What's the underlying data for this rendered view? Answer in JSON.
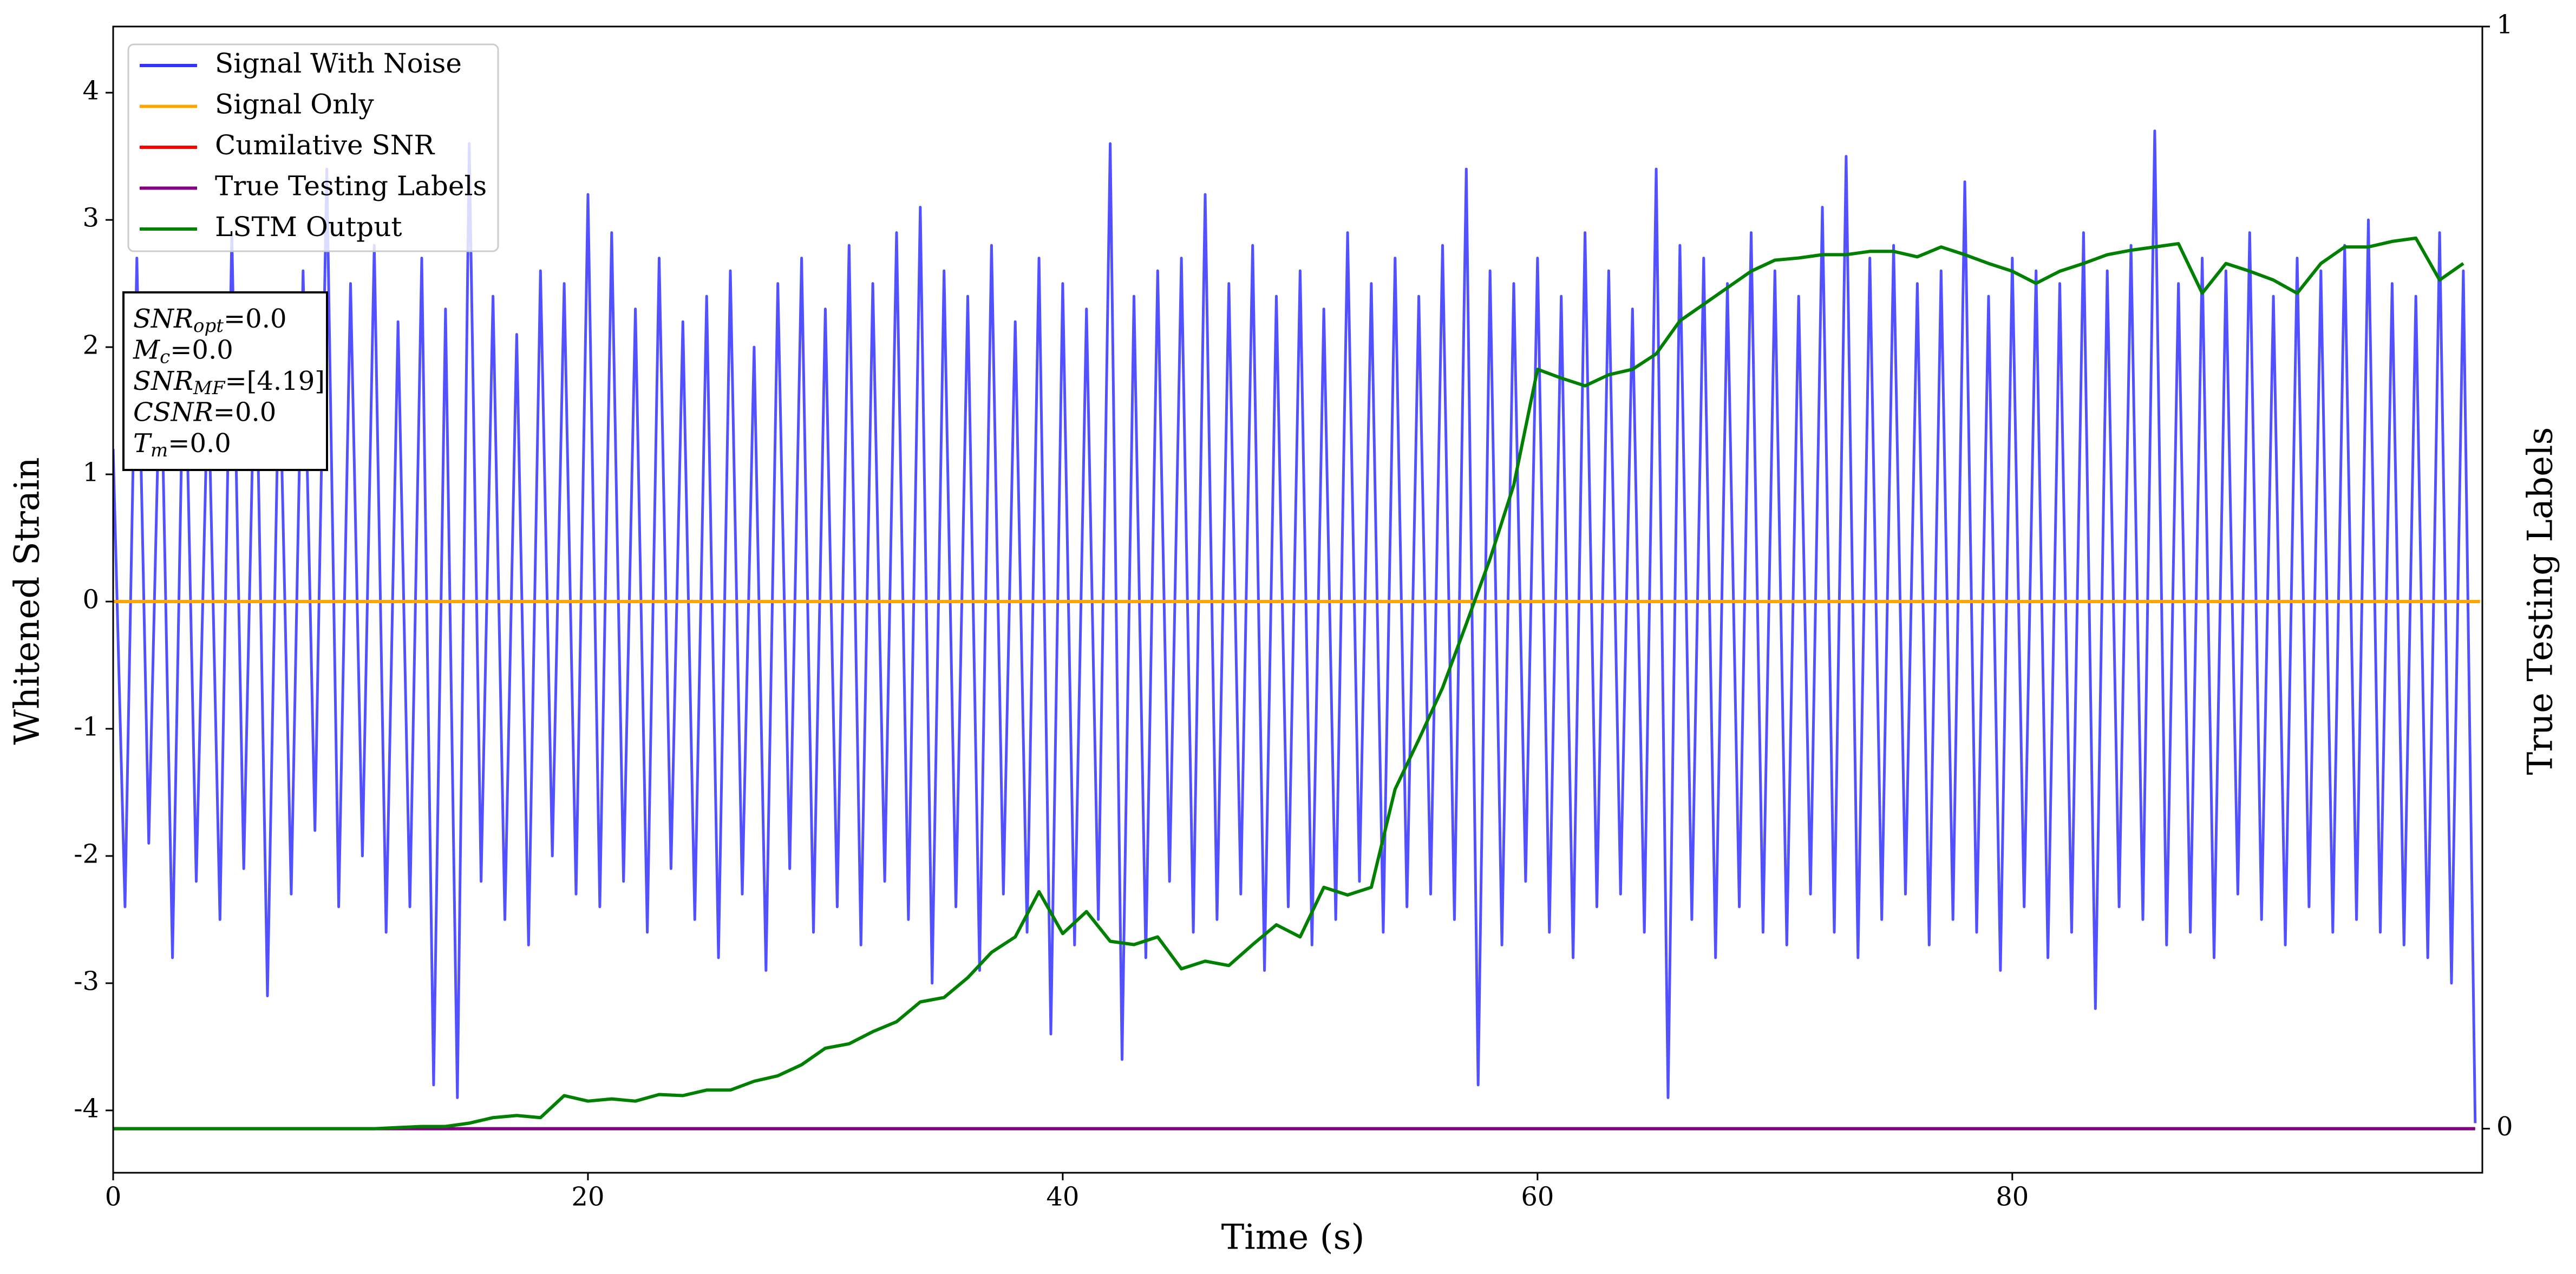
{
  "chart_data": {
    "type": "line",
    "xlabel": "Time (s)",
    "ylabel": "Whitened Strain",
    "y2label": "True Testing Labels",
    "xlim": [
      0,
      99.8
    ],
    "xticks": [
      0,
      20,
      40,
      60,
      80
    ],
    "ylim": [
      -4.49,
      4.52
    ],
    "yticks": [
      -4,
      -3,
      -2,
      -1,
      0,
      1,
      2,
      3,
      4
    ],
    "y2lim": [
      -0.04,
      1.0
    ],
    "y2ticks": [
      0,
      1
    ],
    "legend": "upper left",
    "series": [
      {
        "name": "Signal With Noise",
        "color": "#3333ff",
        "x": [
          0,
          0.5,
          1,
          1.5,
          2,
          2.5,
          3,
          3.5,
          4,
          4.5,
          5,
          5.5,
          6,
          6.5,
          7,
          7.5,
          8,
          8.5,
          9,
          9.5,
          10,
          10.5,
          11,
          11.5,
          12,
          12.5,
          13,
          13.5,
          14,
          14.5,
          15,
          15.5,
          16,
          16.5,
          17,
          17.5,
          18,
          18.5,
          19,
          19.5,
          20,
          20.5,
          21,
          21.5,
          22,
          22.5,
          23,
          23.5,
          24,
          24.5,
          25,
          25.5,
          26,
          26.5,
          27,
          27.5,
          28,
          28.5,
          29,
          29.5,
          30,
          30.5,
          31,
          31.5,
          32,
          32.5,
          33,
          33.5,
          34,
          34.5,
          35,
          35.5,
          36,
          36.5,
          37,
          37.5,
          38,
          38.5,
          39,
          39.5,
          40,
          40.5,
          41,
          41.5,
          42,
          42.5,
          43,
          43.5,
          44,
          44.5,
          45,
          45.5,
          46,
          46.5,
          47,
          47.5,
          48,
          48.5,
          49,
          49.5,
          50,
          50.5,
          51,
          51.5,
          52,
          52.5,
          53,
          53.5,
          54,
          54.5,
          55,
          55.5,
          56,
          56.5,
          57,
          57.5,
          58,
          58.5,
          59,
          59.5,
          60,
          60.5,
          61,
          61.5,
          62,
          62.5,
          63,
          63.5,
          64,
          64.5,
          65,
          65.5,
          66,
          66.5,
          67,
          67.5,
          68,
          68.5,
          69,
          69.5,
          70,
          70.5,
          71,
          71.5,
          72,
          72.5,
          73,
          73.5,
          74,
          74.5,
          75,
          75.5,
          76,
          76.5,
          77,
          77.5,
          78,
          78.5,
          79,
          79.5,
          80,
          80.5,
          81,
          81.5,
          82,
          82.5,
          83,
          83.5,
          84,
          84.5,
          85,
          85.5,
          86,
          86.5,
          87,
          87.5,
          88,
          88.5,
          89,
          89.5,
          90,
          90.5,
          91,
          91.5,
          92,
          92.5,
          93,
          93.5,
          94,
          94.5,
          95,
          95.5,
          96,
          96.5,
          97,
          97.5,
          98,
          98.5,
          99,
          99.5
        ],
        "values": [
          1.2,
          -2.4,
          2.7,
          -1.9,
          2.1,
          -2.8,
          2.4,
          -2.2,
          1.8,
          -2.5,
          2.9,
          -2.1,
          2.3,
          -3.1,
          2.0,
          -2.3,
          2.6,
          -1.8,
          3.4,
          -2.4,
          2.5,
          -2.0,
          2.8,
          -2.6,
          2.2,
          -2.4,
          2.7,
          -3.8,
          2.3,
          -3.9,
          3.6,
          -2.2,
          2.4,
          -2.5,
          2.1,
          -2.7,
          2.6,
          -2.0,
          2.5,
          -2.3,
          3.2,
          -2.4,
          2.9,
          -2.2,
          2.3,
          -2.6,
          2.7,
          -2.1,
          2.2,
          -2.5,
          2.4,
          -2.8,
          2.6,
          -2.3,
          2.0,
          -2.9,
          2.5,
          -2.1,
          2.7,
          -2.6,
          2.3,
          -2.4,
          2.8,
          -2.7,
          2.5,
          -2.2,
          2.9,
          -2.5,
          3.1,
          -3.0,
          2.6,
          -2.4,
          2.4,
          -2.9,
          2.8,
          -2.3,
          2.2,
          -2.6,
          2.7,
          -3.4,
          2.5,
          -2.7,
          2.3,
          -2.5,
          3.6,
          -3.6,
          2.4,
          -2.8,
          2.6,
          -2.2,
          2.7,
          -2.6,
          3.2,
          -2.5,
          2.5,
          -2.3,
          2.8,
          -2.9,
          2.4,
          -2.4,
          2.6,
          -2.7,
          2.3,
          -2.5,
          2.9,
          -2.2,
          2.5,
          -2.6,
          2.7,
          -2.4,
          2.4,
          -2.3,
          2.8,
          -2.5,
          3.4,
          -3.8,
          2.6,
          -2.7,
          2.5,
          -2.2,
          2.7,
          -2.6,
          2.4,
          -2.8,
          2.9,
          -2.4,
          2.6,
          -2.3,
          2.3,
          -2.6,
          3.4,
          -3.9,
          2.8,
          -2.5,
          2.7,
          -2.8,
          2.5,
          -2.4,
          2.9,
          -2.6,
          2.6,
          -2.7,
          2.4,
          -2.3,
          3.1,
          -2.6,
          3.5,
          -2.8,
          2.7,
          -2.5,
          2.8,
          -2.3,
          2.5,
          -2.7,
          2.6,
          -2.5,
          3.3,
          -2.6,
          2.4,
          -2.9,
          2.7,
          -2.4,
          2.6,
          -2.8,
          2.5,
          -2.6,
          2.9,
          -3.2,
          2.6,
          -2.4,
          2.8,
          -2.5,
          3.7,
          -2.7,
          2.5,
          -2.6,
          2.7,
          -2.8,
          2.6,
          -2.3,
          2.9,
          -2.5,
          2.4,
          -2.7,
          2.7,
          -2.4,
          2.6,
          -2.6,
          2.8,
          -2.5,
          3.0,
          -2.6,
          2.5,
          -2.7,
          2.4,
          -2.8,
          2.9,
          -3.0,
          2.6,
          -4.1
        ]
      },
      {
        "name": "Signal Only",
        "color": "orange",
        "x": [
          0,
          99.7
        ],
        "values": [
          0,
          0
        ]
      },
      {
        "name": "Cumilative SNR",
        "color": "red",
        "x": [
          0,
          99.7
        ],
        "values": [
          0,
          0
        ]
      },
      {
        "name": "True Testing Labels",
        "color": "purple",
        "axis": "y2",
        "x": [
          0,
          99.5
        ],
        "values": [
          0,
          0
        ]
      },
      {
        "name": "LSTM Output",
        "color": "green",
        "axis": "y2",
        "x": [
          0,
          1,
          2,
          3,
          4,
          5,
          6,
          7,
          8,
          9,
          10,
          11,
          12,
          13,
          14,
          15,
          16,
          17,
          18,
          19,
          20,
          21,
          22,
          23,
          24,
          25,
          26,
          27,
          28,
          29,
          30,
          31,
          32,
          33,
          34,
          35,
          36,
          37,
          38,
          39,
          40,
          41,
          42,
          43,
          44,
          45,
          46,
          47,
          48,
          49,
          50,
          51,
          52,
          53,
          54,
          55,
          56,
          57,
          58,
          59,
          60,
          61,
          62,
          63,
          64,
          65,
          66,
          67,
          68,
          69,
          70,
          71,
          72,
          73,
          74,
          75,
          76,
          77,
          78,
          79,
          80,
          81,
          82,
          83,
          84,
          85,
          86,
          87,
          88,
          89,
          90,
          91,
          92,
          93,
          94,
          95,
          96,
          97,
          98,
          99
        ],
        "values": [
          0,
          0,
          0,
          0,
          0,
          0,
          0,
          0,
          0,
          0,
          0,
          0,
          0.001,
          0.002,
          0.002,
          0.005,
          0.01,
          0.012,
          0.01,
          0.03,
          0.025,
          0.027,
          0.025,
          0.031,
          0.03,
          0.035,
          0.035,
          0.043,
          0.048,
          0.058,
          0.073,
          0.077,
          0.088,
          0.097,
          0.115,
          0.119,
          0.137,
          0.16,
          0.174,
          0.215,
          0.177,
          0.197,
          0.17,
          0.167,
          0.174,
          0.145,
          0.152,
          0.148,
          0.167,
          0.185,
          0.174,
          0.219,
          0.212,
          0.219,
          0.308,
          0.353,
          0.4,
          0.458,
          0.517,
          0.584,
          0.689,
          0.681,
          0.674,
          0.684,
          0.689,
          0.703,
          0.733,
          0.748,
          0.763,
          0.778,
          0.788,
          0.79,
          0.793,
          0.793,
          0.796,
          0.796,
          0.791,
          0.8,
          0.793,
          0.785,
          0.778,
          0.767,
          0.778,
          0.785,
          0.793,
          0.797,
          0.8,
          0.803,
          0.758,
          0.785,
          0.778,
          0.77,
          0.758,
          0.785,
          0.8,
          0.8,
          0.805,
          0.808,
          0.77,
          0.785
        ]
      }
    ],
    "annotation": [
      {
        "base": "SNR",
        "sub": "opt",
        "text": "=0.0"
      },
      {
        "base": "M",
        "sub": "c",
        "text": "=0.0"
      },
      {
        "base": "SNR",
        "sub": "MF",
        "text": "=[4.19]"
      },
      {
        "base": "CSNR",
        "text": "=0.0"
      },
      {
        "base": "T",
        "sub": "m",
        "text": "=0.0"
      }
    ]
  }
}
